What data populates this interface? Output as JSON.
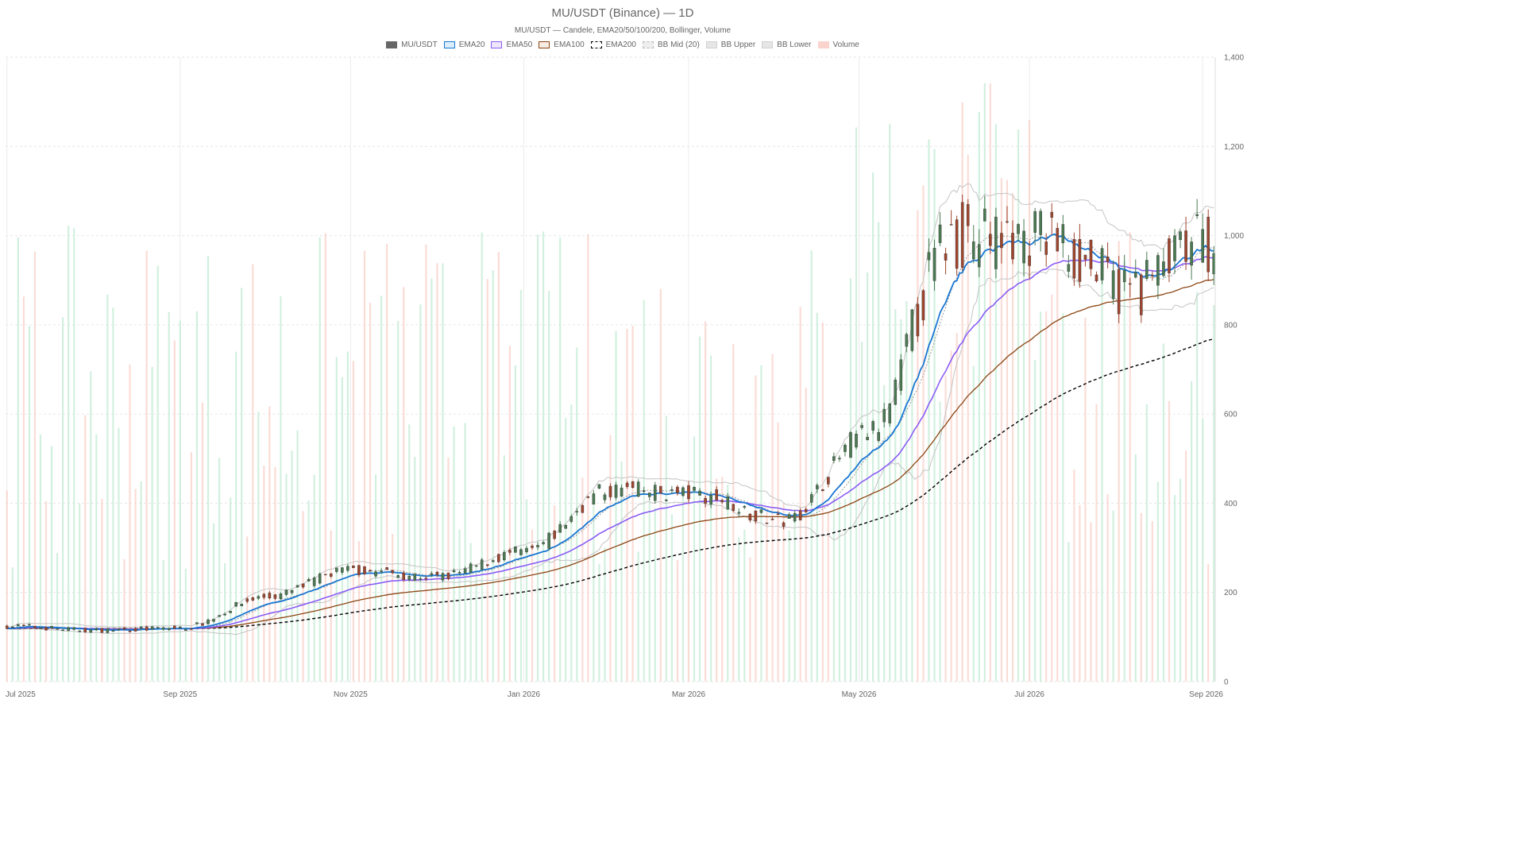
{
  "title": "MU/USDT (Binance) — 1D",
  "subtitle": "MU/USDT — Candele, EMA20/50/100/200, Bollinger, Volume",
  "legend": [
    {
      "label": "MU/USDT",
      "fill": "#666666",
      "stroke": "#666666",
      "style": "solid"
    },
    {
      "label": "EMA20",
      "fill": "#dbeefb",
      "stroke": "#1976d2",
      "style": "solid"
    },
    {
      "label": "EMA50",
      "fill": "#eee7fb",
      "stroke": "#8b5cf6",
      "style": "solid"
    },
    {
      "label": "EMA100",
      "fill": "#f6ece2",
      "stroke": "#8b4513",
      "style": "solid"
    },
    {
      "label": "EMA200",
      "fill": "#ffffff",
      "stroke": "#000000",
      "style": "dashed"
    },
    {
      "label": "BB Mid (20)",
      "fill": "#eeeeee",
      "stroke": "#bbbbbb",
      "style": "dashed"
    },
    {
      "label": "BB Upper",
      "fill": "#e6e6e6",
      "stroke": "#d0d0d0",
      "style": "solid"
    },
    {
      "label": "BB Lower",
      "fill": "#e6e6e6",
      "stroke": "#d0d0d0",
      "style": "solid"
    },
    {
      "label": "Volume",
      "fill": "#f9d3cc",
      "stroke": "#f9d3cc",
      "style": "solid"
    }
  ],
  "chart_data": {
    "type": "candlestick",
    "title": "MU/USDT (Binance) — 1D",
    "subtitle": "MU/USDT — Candele, EMA20/50/100/200, Bollinger, Volume",
    "x_ticks": [
      "Jul 2025",
      "Sep 2025",
      "Nov 2025",
      "Jan 2026",
      "Mar 2026",
      "May 2026",
      "Jul 2026",
      "Sep 2026"
    ],
    "y_ticks": [
      "0",
      "200",
      "400",
      "600",
      "800",
      "1,000",
      "1,200",
      "1,400"
    ],
    "ylim": [
      0,
      1400
    ],
    "y_axis_position": "right",
    "grid": true,
    "legend_position": "top-center",
    "colors": {
      "up": "#4a7a52",
      "down": "#a0452e",
      "volume_up": "#c7ecd7",
      "volume_down": "#f9d3cc",
      "ema20": "#1976d2",
      "ema50": "#8b5cf6",
      "ema100": "#8b4513",
      "ema200": "#000000",
      "bb_mid": "#999999",
      "bb_band": "#c4c4c4"
    },
    "price_anchors": [
      [
        "Jul 2025",
        125
      ],
      [
        "Aug 2025",
        115
      ],
      [
        "Sep 2025",
        120
      ],
      [
        "Oct 2025",
        190
      ],
      [
        "Nov 2025",
        250
      ],
      [
        "Dec 2025",
        235
      ],
      [
        "Jan 2026",
        290
      ],
      [
        "Feb 2026",
        430
      ],
      [
        "Mar 2026",
        420
      ],
      [
        "Apr 2026",
        360
      ],
      [
        "May 2026",
        560
      ],
      [
        "Jun 2026",
        1000
      ],
      [
        "Jul 2026",
        1000
      ],
      [
        "Aug 2026",
        880
      ],
      [
        "Sep 2026",
        990
      ]
    ],
    "indicator_end_values": {
      "EMA20": 940,
      "EMA50": 915,
      "EMA100": 835,
      "EMA200": 665,
      "BB Upper": 1010,
      "BB Lower": 870
    },
    "volume_scale_note": "volume bars share the bottom area, peak near top of plot"
  }
}
